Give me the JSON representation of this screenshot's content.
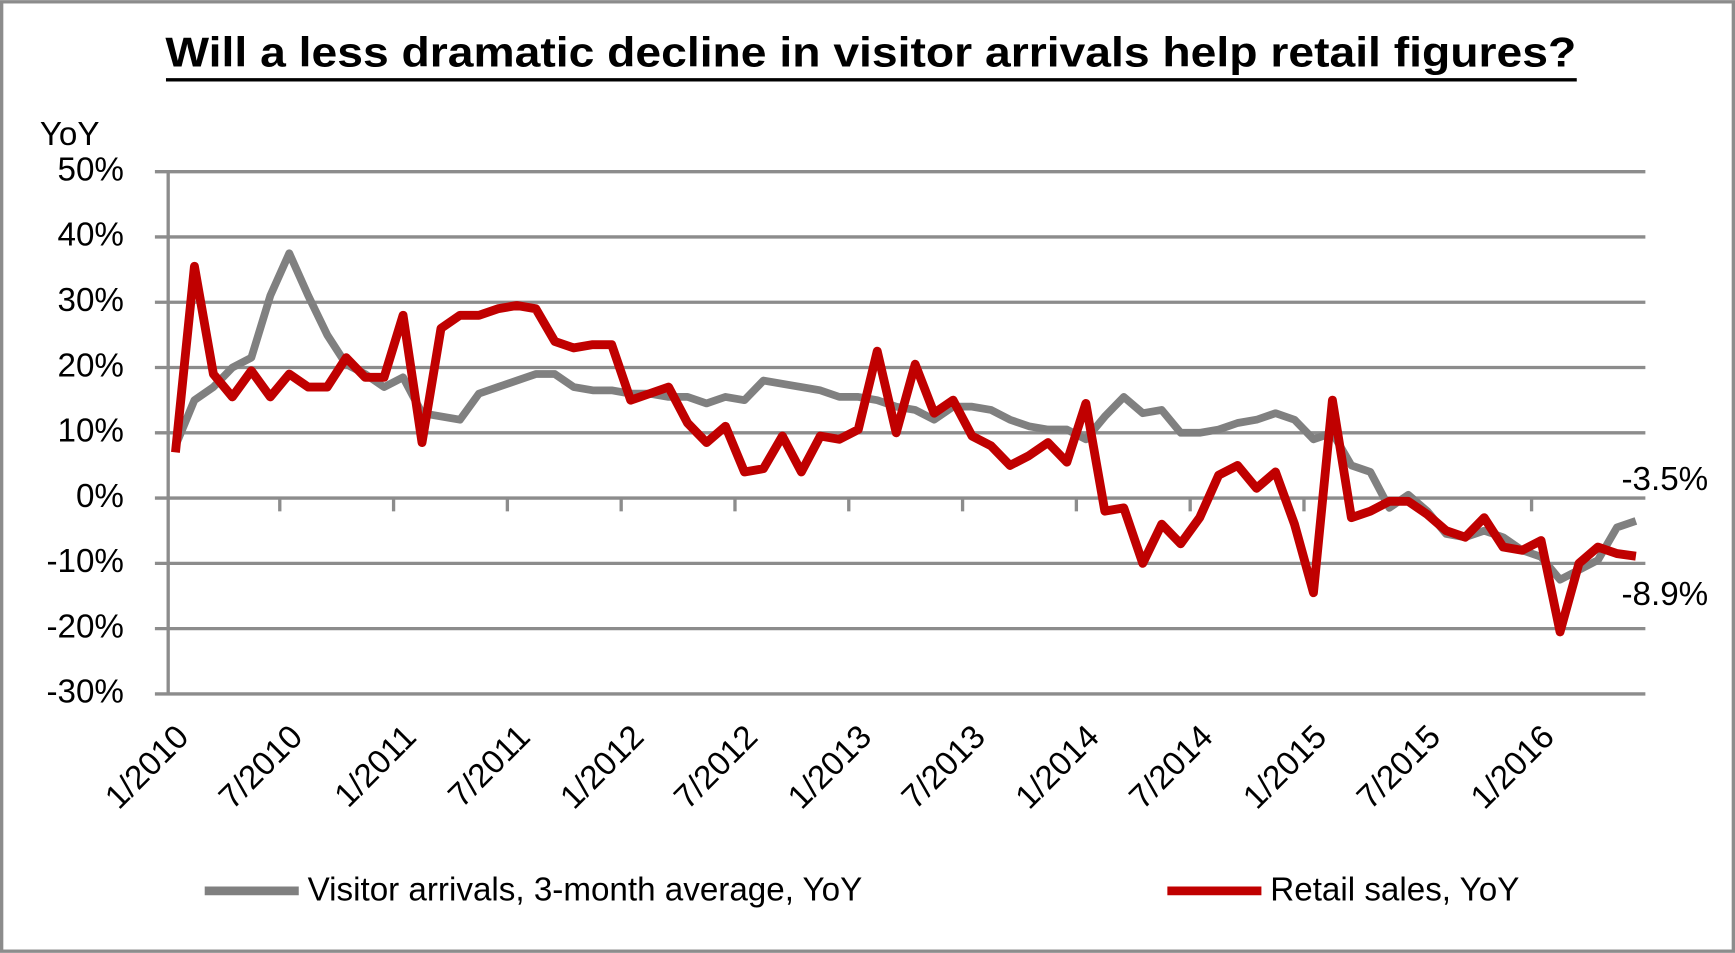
{
  "chart_data": {
    "type": "line",
    "title": "Will a less dramatic decline in visitor arrivals help retail figures?",
    "y_label": "YoY",
    "categories": [
      "1/2010",
      null,
      null,
      null,
      null,
      null,
      "7/2010",
      null,
      null,
      null,
      null,
      null,
      "1/2011",
      null,
      null,
      null,
      null,
      null,
      "7/2011",
      null,
      null,
      null,
      null,
      null,
      "1/2012",
      null,
      null,
      null,
      null,
      null,
      "7/2012",
      null,
      null,
      null,
      null,
      null,
      "1/2013",
      null,
      null,
      null,
      null,
      null,
      "7/2013",
      null,
      null,
      null,
      null,
      null,
      "1/2014",
      null,
      null,
      null,
      null,
      null,
      "7/2014",
      null,
      null,
      null,
      null,
      null,
      "1/2015",
      null,
      null,
      null,
      null,
      null,
      "7/2015",
      null,
      null,
      null,
      null,
      null,
      "1/2016",
      null,
      null,
      null,
      null,
      null
    ],
    "series": [
      {
        "name": "Visitor arrivals, 3-month average, YoY",
        "color": "#808080",
        "values": [
          8,
          15,
          17,
          20,
          21.5,
          31,
          37.5,
          31,
          25,
          20.5,
          19,
          17,
          18.5,
          13,
          12.5,
          12,
          16,
          17,
          18,
          19,
          19,
          17,
          16.5,
          16.5,
          16,
          16,
          15.5,
          15.5,
          14.5,
          15.5,
          15,
          18,
          17.5,
          17,
          16.5,
          15.5,
          15.5,
          15,
          14,
          13.5,
          12,
          14,
          14,
          13.5,
          12,
          11,
          10.5,
          10.5,
          9,
          12.5,
          15.5,
          13,
          13.5,
          10,
          10,
          10.5,
          11.5,
          12,
          13,
          12,
          9,
          10,
          5,
          4,
          -1.5,
          0.5,
          -2,
          -5.5,
          -6,
          -5,
          -6,
          -8,
          -9,
          -12.5,
          -11,
          -9.5,
          -4.5,
          -3.5
        ],
        "value_labels": [
          null,
          null,
          null,
          null,
          null,
          null,
          null,
          null,
          null,
          null,
          null,
          null,
          null,
          null,
          null,
          null,
          null,
          null,
          null,
          null,
          null,
          null,
          null,
          null,
          null,
          null,
          null,
          null,
          null,
          null,
          null,
          null,
          null,
          null,
          null,
          null,
          null,
          null,
          null,
          null,
          null,
          null,
          null,
          null,
          null,
          null,
          null,
          null,
          null,
          null,
          null,
          null,
          null,
          null,
          null,
          null,
          null,
          null,
          null,
          null,
          null,
          null,
          null,
          null,
          null,
          null,
          null,
          null,
          null,
          null,
          null,
          null,
          null,
          null,
          null,
          null,
          null,
          "-3.5%"
        ]
      },
      {
        "name": "Retail sales, YoY",
        "color": "#c00000",
        "values": [
          7,
          35.5,
          19,
          15.5,
          19.5,
          15.5,
          19,
          17,
          17,
          21.5,
          18.5,
          18.5,
          28,
          8.5,
          26,
          28,
          28,
          29,
          29.5,
          29,
          24,
          23,
          23.5,
          23.5,
          15,
          16,
          17,
          11.5,
          8.5,
          11,
          4,
          4.5,
          9.5,
          4,
          9.5,
          9,
          10.5,
          22.5,
          10,
          20.5,
          13,
          15,
          9.5,
          8,
          5,
          6.5,
          8.5,
          5.5,
          14.5,
          -2,
          -1.5,
          -10,
          -4,
          -7,
          -3,
          3.5,
          5,
          1.5,
          4,
          -4,
          -14.5,
          15,
          -3,
          -2,
          -0.5,
          -0.5,
          -2.5,
          -5,
          -6,
          -3,
          -7.5,
          -8,
          -6.5,
          -20.5,
          -10,
          -7.5,
          -8.5,
          -8.9
        ],
        "value_labels": [
          null,
          null,
          null,
          null,
          null,
          null,
          null,
          null,
          null,
          null,
          null,
          null,
          null,
          null,
          null,
          null,
          null,
          null,
          null,
          null,
          null,
          null,
          null,
          null,
          null,
          null,
          null,
          null,
          null,
          null,
          null,
          null,
          null,
          null,
          null,
          null,
          null,
          null,
          null,
          null,
          null,
          null,
          null,
          null,
          null,
          null,
          null,
          null,
          null,
          null,
          null,
          null,
          null,
          null,
          null,
          null,
          null,
          null,
          null,
          null,
          null,
          null,
          null,
          null,
          null,
          null,
          null,
          null,
          null,
          null,
          null,
          null,
          null,
          null,
          null,
          null,
          null,
          "-8.9%"
        ]
      }
    ],
    "ylim": [
      -30,
      50
    ],
    "yticks": [
      {
        "value": -30,
        "label": "-30%"
      },
      {
        "value": -20,
        "label": "-20%"
      },
      {
        "value": -10,
        "label": "-10%"
      },
      {
        "value": 0,
        "label": "0%"
      },
      {
        "value": 10,
        "label": "10%"
      },
      {
        "value": 20,
        "label": "20%"
      },
      {
        "value": 30,
        "label": "30%"
      },
      {
        "value": 40,
        "label": "40%"
      },
      {
        "value": 50,
        "label": "50%"
      }
    ],
    "grid": true,
    "legend": "bottom"
  }
}
